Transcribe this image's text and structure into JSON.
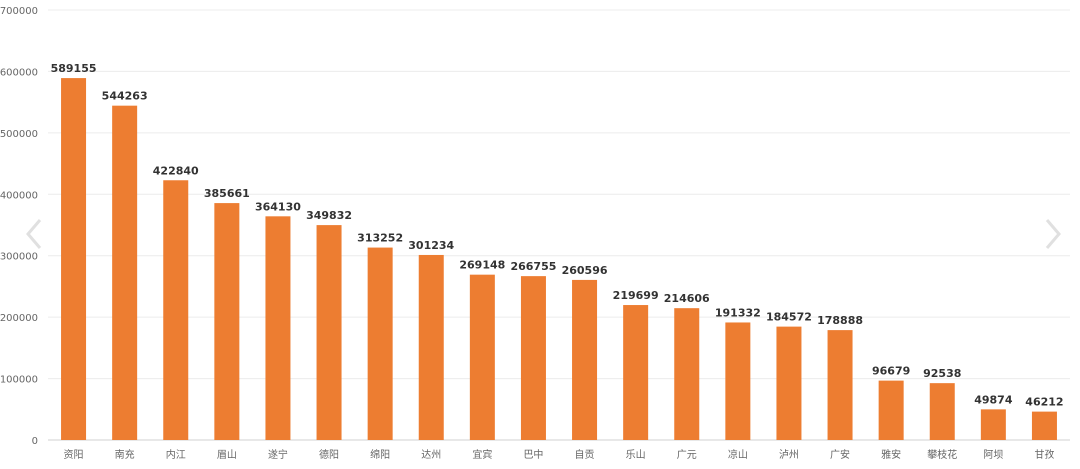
{
  "chart_data": {
    "type": "bar",
    "categories": [
      "资阳",
      "南充",
      "内江",
      "眉山",
      "遂宁",
      "德阳",
      "绵阳",
      "达州",
      "宜宾",
      "巴中",
      "自贡",
      "乐山",
      "广元",
      "凉山",
      "泸州",
      "广安",
      "雅安",
      "攀枝花",
      "阿坝",
      "甘孜"
    ],
    "values": [
      589155,
      544263,
      422840,
      385661,
      364130,
      349832,
      313252,
      301234,
      269148,
      266755,
      260596,
      219699,
      214606,
      191332,
      184572,
      178888,
      96679,
      92538,
      49874,
      46212
    ],
    "ylim": [
      0,
      700000
    ],
    "yticks": [
      0,
      100000,
      200000,
      300000,
      400000,
      500000,
      600000,
      700000
    ],
    "grid": true,
    "bar_color": "#ED7D31",
    "title": "",
    "xlabel": "",
    "ylabel": ""
  },
  "nav": {
    "prev_icon": "chevron-left-icon",
    "next_icon": "chevron-right-icon"
  }
}
